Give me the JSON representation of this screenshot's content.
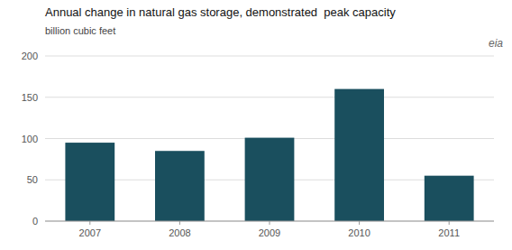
{
  "chart_data": {
    "type": "bar",
    "title": "Annual change in natural gas storage, demonstrated  peak capacity",
    "subtitle": "billion cubic feet",
    "annotations": [
      "eia"
    ],
    "categories": [
      "2007",
      "2008",
      "2009",
      "2010",
      "2011"
    ],
    "values": [
      95,
      85,
      101,
      160,
      55
    ],
    "color": "#1a4f5e",
    "ylim": [
      0,
      200
    ],
    "yticks": [
      0,
      50,
      100,
      150,
      200
    ],
    "grid": true
  }
}
